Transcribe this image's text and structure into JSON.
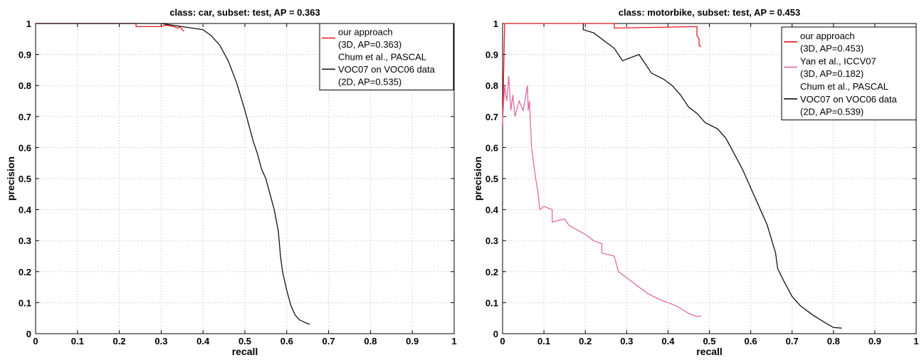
{
  "chart_data": [
    {
      "type": "line",
      "title": "class: car, subset: test, AP = 0.363",
      "xlabel": "recall",
      "ylabel": "precision",
      "xlim": [
        0,
        1
      ],
      "ylim": [
        0,
        1
      ],
      "grid": true,
      "legend_position": "top-right",
      "xticks": [
        "0",
        "0.1",
        "0.2",
        "0.3",
        "0.4",
        "0.5",
        "0.6",
        "0.7",
        "0.8",
        "0.9",
        "1"
      ],
      "yticks": [
        "0",
        "0.1",
        "0.2",
        "0.3",
        "0.4",
        "0.5",
        "0.6",
        "0.7",
        "0.8",
        "0.9",
        "1"
      ],
      "series": [
        {
          "name": "our approach (3D, AP=0.363)",
          "legend_lines": [
            "our approach",
            "(3D, AP=0.363)"
          ],
          "color": "#e8171b",
          "points": [
            [
              0,
              1.0
            ],
            [
              0.24,
              1.0
            ],
            [
              0.24,
              0.99
            ],
            [
              0.3,
              0.99
            ],
            [
              0.31,
              0.995
            ],
            [
              0.33,
              0.99
            ],
            [
              0.34,
              0.985
            ],
            [
              0.345,
              0.99
            ],
            [
              0.35,
              0.98
            ],
            [
              0.355,
              0.975
            ]
          ]
        },
        {
          "name": "Chum et al., PASCAL VOC07 on VOC06 data (2D, AP=0.535)",
          "legend_lines": [
            "Chum et al., PASCAL",
            "VOC07 on VOC06 data",
            "(2D, AP=0.535)"
          ],
          "color": "#111111",
          "points": [
            [
              0,
              1.0
            ],
            [
              0.3,
              1.0
            ],
            [
              0.35,
              0.99
            ],
            [
              0.4,
              0.98
            ],
            [
              0.42,
              0.96
            ],
            [
              0.44,
              0.93
            ],
            [
              0.46,
              0.88
            ],
            [
              0.48,
              0.81
            ],
            [
              0.5,
              0.72
            ],
            [
              0.51,
              0.67
            ],
            [
              0.52,
              0.62
            ],
            [
              0.53,
              0.58
            ],
            [
              0.54,
              0.53
            ],
            [
              0.55,
              0.5
            ],
            [
              0.56,
              0.45
            ],
            [
              0.57,
              0.4
            ],
            [
              0.58,
              0.33
            ],
            [
              0.585,
              0.25
            ],
            [
              0.59,
              0.2
            ],
            [
              0.6,
              0.14
            ],
            [
              0.61,
              0.09
            ],
            [
              0.62,
              0.06
            ],
            [
              0.63,
              0.045
            ],
            [
              0.645,
              0.035
            ],
            [
              0.655,
              0.03
            ]
          ]
        }
      ]
    },
    {
      "type": "line",
      "title": "class: motorbike, subset: test, AP = 0.453",
      "xlabel": "recall",
      "ylabel": "precision",
      "xlim": [
        0,
        1
      ],
      "ylim": [
        0,
        1
      ],
      "grid": true,
      "legend_position": "top-right",
      "xticks": [
        "0",
        "0.1",
        "0.2",
        "0.3",
        "0.4",
        "0.5",
        "0.6",
        "0.7",
        "0.8",
        "0.9",
        "1"
      ],
      "yticks": [
        "0",
        "0.1",
        "0.2",
        "0.3",
        "0.4",
        "0.5",
        "0.6",
        "0.7",
        "0.8",
        "0.9",
        "1"
      ],
      "series": [
        {
          "name": "our approach (3D, AP=0.453)",
          "legend_lines": [
            "our approach",
            "(3D, AP=0.453)"
          ],
          "color": "#e8171b",
          "points": [
            [
              0,
              0.67
            ],
            [
              0.005,
              1.0
            ],
            [
              0.27,
              1.0
            ],
            [
              0.27,
              0.985
            ],
            [
              0.47,
              0.99
            ],
            [
              0.47,
              0.96
            ],
            [
              0.475,
              0.95
            ],
            [
              0.475,
              0.93
            ],
            [
              0.48,
              0.925
            ]
          ]
        },
        {
          "name": "Yan et al., ICCV07 (3D, AP=0.182)",
          "legend_lines": [
            "Yan et al., ICCV07",
            "(3D, AP=0.182)"
          ],
          "color": "#de6aa3",
          "points": [
            [
              0,
              0.68
            ],
            [
              0.005,
              0.8
            ],
            [
              0.01,
              0.75
            ],
            [
              0.015,
              0.83
            ],
            [
              0.02,
              0.72
            ],
            [
              0.025,
              0.77
            ],
            [
              0.03,
              0.7
            ],
            [
              0.04,
              0.75
            ],
            [
              0.05,
              0.72
            ],
            [
              0.06,
              0.8
            ],
            [
              0.062,
              0.72
            ],
            [
              0.065,
              0.75
            ],
            [
              0.07,
              0.6
            ],
            [
              0.075,
              0.55
            ],
            [
              0.08,
              0.5
            ],
            [
              0.085,
              0.46
            ],
            [
              0.09,
              0.4
            ],
            [
              0.1,
              0.41
            ],
            [
              0.12,
              0.4
            ],
            [
              0.12,
              0.36
            ],
            [
              0.15,
              0.37
            ],
            [
              0.16,
              0.35
            ],
            [
              0.2,
              0.32
            ],
            [
              0.22,
              0.3
            ],
            [
              0.24,
              0.29
            ],
            [
              0.24,
              0.26
            ],
            [
              0.27,
              0.25
            ],
            [
              0.28,
              0.2
            ],
            [
              0.3,
              0.18
            ],
            [
              0.35,
              0.13
            ],
            [
              0.38,
              0.11
            ],
            [
              0.42,
              0.09
            ],
            [
              0.45,
              0.065
            ],
            [
              0.47,
              0.055
            ],
            [
              0.48,
              0.058
            ]
          ]
        },
        {
          "name": "Chum et al., PASCAL VOC07 on VOC06 data (2D, AP=0.539)",
          "legend_lines": [
            "Chum et al., PASCAL",
            "VOC07 on VOC06 data",
            "(2D, AP=0.539)"
          ],
          "color": "#111111",
          "points": [
            [
              0.195,
              1.0
            ],
            [
              0.195,
              0.98
            ],
            [
              0.22,
              0.97
            ],
            [
              0.24,
              0.95
            ],
            [
              0.27,
              0.92
            ],
            [
              0.29,
              0.88
            ],
            [
              0.33,
              0.9
            ],
            [
              0.36,
              0.84
            ],
            [
              0.39,
              0.82
            ],
            [
              0.41,
              0.8
            ],
            [
              0.43,
              0.77
            ],
            [
              0.45,
              0.73
            ],
            [
              0.47,
              0.71
            ],
            [
              0.49,
              0.68
            ],
            [
              0.52,
              0.66
            ],
            [
              0.54,
              0.63
            ],
            [
              0.56,
              0.58
            ],
            [
              0.58,
              0.53
            ],
            [
              0.6,
              0.47
            ],
            [
              0.62,
              0.41
            ],
            [
              0.64,
              0.35
            ],
            [
              0.66,
              0.26
            ],
            [
              0.665,
              0.21
            ],
            [
              0.68,
              0.17
            ],
            [
              0.7,
              0.12
            ],
            [
              0.72,
              0.09
            ],
            [
              0.75,
              0.06
            ],
            [
              0.78,
              0.035
            ],
            [
              0.8,
              0.02
            ],
            [
              0.82,
              0.018
            ]
          ]
        }
      ]
    }
  ]
}
